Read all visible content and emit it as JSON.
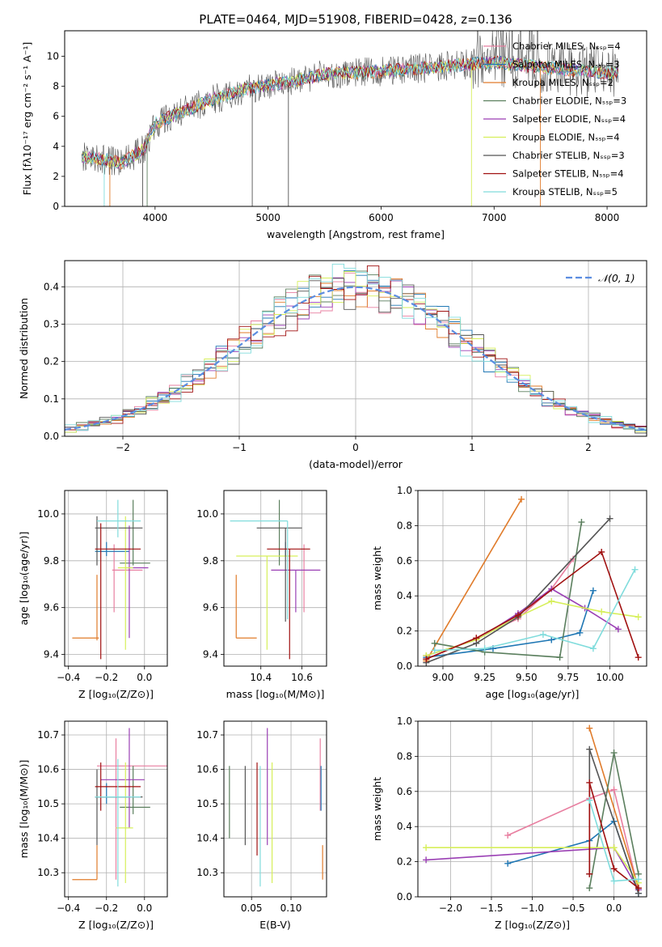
{
  "figure": {
    "title": "PLATE=0464, MJD=51908, FIBERID=0428, z=0.136"
  },
  "colors": {
    "series": [
      "#e87fa0",
      "#1f77b4",
      "#e07b2a",
      "#5b7f5e",
      "#9a3fb4",
      "#d6ef5a",
      "#555555",
      "#a01010",
      "#80dcdc"
    ],
    "mean_line": "#5b8de0",
    "grid": "#b0b0b0"
  },
  "chart_data": [
    {
      "id": "spectrum",
      "type": "line",
      "xlabel": "wavelength [Angstrom, rest frame]",
      "ylabel": "Flux [fλ10⁻¹⁷ erg cm⁻² s⁻¹ A⁻¹]",
      "xlim": [
        3200,
        8350
      ],
      "ylim": [
        0,
        11.7
      ],
      "xticks": [
        4000,
        5000,
        6000,
        7000,
        8000
      ],
      "yticks": [
        0,
        2,
        4,
        6,
        8,
        10
      ],
      "grid": false,
      "legend_position": "top-right",
      "legend": [
        "Chabrier MILES, Nₛₛₚ=4",
        "Salpeter MILES, Nₛₛₚ=3",
        "Kroupa MILES, Nₛₛₚ=2",
        "Chabrier ELODIE, Nₛₛₚ=3",
        "Salpeter ELODIE, Nₛₛₚ=4",
        "Kroupa ELODIE, Nₛₛₚ=4",
        "Chabrier STELIB, Nₛₛₚ=3",
        "Salpeter STELIB, Nₛₛₚ=4",
        "Kroupa STELIB, Nₛₛₚ=5"
      ],
      "continuum": {
        "x": [
          3350,
          3500,
          3700,
          3900,
          4000,
          4200,
          4500,
          4800,
          5000,
          5200,
          5500,
          6000,
          6500,
          7000,
          7500,
          8000,
          8100
        ],
        "y": [
          3.3,
          3.2,
          2.9,
          3.8,
          5.5,
          6.2,
          7.1,
          7.8,
          8.1,
          8.3,
          8.8,
          9.0,
          9.3,
          9.6,
          9.2,
          8.9,
          9.0
        ]
      }
    },
    {
      "id": "residuals",
      "type": "line",
      "xlabel": "(data-model)/error",
      "ylabel": "Normed distribution",
      "xlim": [
        -2.5,
        2.5
      ],
      "ylim": [
        0,
        0.47
      ],
      "xticks": [
        -2,
        -1,
        0,
        1,
        2
      ],
      "xtick_labels": [
        "−2",
        "−1",
        "0",
        "1",
        "2"
      ],
      "yticks": [
        0.0,
        0.1,
        0.2,
        0.3,
        0.4
      ],
      "ytick_labels": [
        "0.0",
        "0.1",
        "0.2",
        "0.3",
        "0.4"
      ],
      "grid": true,
      "legend_position": "top-right",
      "normal_label": "𝒩(0, 1)"
    },
    {
      "id": "age-vs-Z",
      "type": "scatter",
      "xlabel": "Z [log₁₀(Z/Z⊙)]",
      "ylabel": "age  [log₁₀(age/yr)]",
      "xlim": [
        -0.42,
        0.12
      ],
      "ylim": [
        9.35,
        10.1
      ],
      "xticks": [
        -0.4,
        -0.2,
        0.0
      ],
      "xtick_labels": [
        "−0.4",
        "−0.2",
        "0.0"
      ],
      "yticks": [
        9.4,
        9.6,
        9.8,
        10.0
      ],
      "ytick_labels": [
        "9.4",
        "9.6",
        "9.8",
        "10.0"
      ],
      "grid": true,
      "points": [
        {
          "x": -0.16,
          "xerr": [
            0.01,
            0.15
          ],
          "y": 9.76,
          "yerr": [
            0.18,
            0.11
          ]
        },
        {
          "x": -0.2,
          "xerr": [
            0.06,
            0.12
          ],
          "y": 9.84,
          "yerr": [
            0.02,
            0.04
          ]
        },
        {
          "x": -0.25,
          "xerr": [
            0.13,
            0.01
          ],
          "y": 9.47,
          "yerr": [
            0.01,
            0.27
          ]
        },
        {
          "x": -0.06,
          "xerr": [
            0.07,
            0.09
          ],
          "y": 9.79,
          "yerr": [
            0.01,
            0.27
          ]
        },
        {
          "x": -0.08,
          "xerr": [
            0.02,
            0.1
          ],
          "y": 9.77,
          "yerr": [
            0.3,
            0.18
          ]
        },
        {
          "x": -0.1,
          "xerr": [
            0.04,
            0.04
          ],
          "y": 9.77,
          "yerr": [
            0.35,
            0.22
          ]
        },
        {
          "x": -0.25,
          "xerr": [
            0.01,
            0.24
          ],
          "y": 9.94,
          "yerr": [
            0.16,
            0.05
          ]
        },
        {
          "x": -0.23,
          "xerr": [
            0.03,
            0.21
          ],
          "y": 9.85,
          "yerr": [
            0.47,
            0.11
          ]
        },
        {
          "x": -0.14,
          "xerr": [
            0.11,
            0.12
          ],
          "y": 9.97,
          "yerr": [
            0.07,
            0.09
          ]
        }
      ]
    },
    {
      "id": "age-vs-mass",
      "type": "scatter",
      "xlabel": "mass [log₁₀(M/M⊙)]",
      "ylabel": "",
      "xlim": [
        10.22,
        10.72
      ],
      "ylim": [
        9.35,
        10.1
      ],
      "xticks": [
        10.4,
        10.6
      ],
      "xtick_labels": [
        "10.4",
        "10.6"
      ],
      "yticks": [
        9.4,
        9.6,
        9.8,
        10.0
      ],
      "ytick_labels": [
        "9.4",
        "9.6",
        "9.8",
        "10.0"
      ],
      "grid": true,
      "points": [
        {
          "x": 10.61,
          "xerr": [
            0.0,
            0.0
          ],
          "y": 9.76,
          "yerr": [
            0.18,
            0.11
          ]
        },
        {
          "x": 10.52,
          "xerr": [
            0.0,
            0.0
          ],
          "y": 9.84,
          "yerr": [
            0.02,
            0.04
          ]
        },
        {
          "x": 10.28,
          "xerr": [
            0.0,
            0.1
          ],
          "y": 9.47,
          "yerr": [
            0.0,
            0.27
          ]
        },
        {
          "x": 10.49,
          "xerr": [
            0.0,
            0.0
          ],
          "y": 9.79,
          "yerr": [
            0.01,
            0.27
          ]
        },
        {
          "x": 10.57,
          "xerr": [
            0.12,
            0.12
          ],
          "y": 9.76,
          "yerr": [
            0.18,
            0.0
          ]
        },
        {
          "x": 10.43,
          "xerr": [
            0.15,
            0.15
          ],
          "y": 9.82,
          "yerr": [
            0.4,
            0.0
          ]
        },
        {
          "x": 10.52,
          "xerr": [
            0.14,
            0.08
          ],
          "y": 9.94,
          "yerr": [
            0.4,
            0.0
          ]
        },
        {
          "x": 10.54,
          "xerr": [
            0.11,
            0.1
          ],
          "y": 9.85,
          "yerr": [
            0.47,
            0.0
          ]
        },
        {
          "x": 10.53,
          "xerr": [
            0.28,
            0.0
          ],
          "y": 9.97,
          "yerr": [
            0.42,
            0.0
          ]
        }
      ]
    },
    {
      "id": "mass-weight-vs-age",
      "type": "line",
      "xlabel": "age  [log₁₀(age/yr)]",
      "ylabel": "mass weight",
      "xlim": [
        8.85,
        10.22
      ],
      "ylim": [
        0,
        1.0
      ],
      "xticks": [
        9.0,
        9.25,
        9.5,
        9.75,
        10.0
      ],
      "xtick_labels": [
        "9.00",
        "9.25",
        "9.50",
        "9.75",
        "10.00"
      ],
      "yticks": [
        0.0,
        0.2,
        0.4,
        0.6,
        0.8,
        1.0
      ],
      "ytick_labels": [
        "0.0",
        "0.2",
        "0.4",
        "0.6",
        "0.8",
        "1.0"
      ],
      "grid": true,
      "series": [
        {
          "x": [
            8.9,
            9.2,
            9.45,
            9.65,
            9.78
          ],
          "y": [
            0.04,
            0.16,
            0.27,
            0.44,
            0.61
          ]
        },
        {
          "x": [
            8.9,
            9.3,
            9.65,
            9.82,
            9.9
          ],
          "y": [
            0.05,
            0.1,
            0.15,
            0.19,
            0.43
          ]
        },
        {
          "x": [
            8.9,
            9.47
          ],
          "y": [
            0.03,
            0.95
          ]
        },
        {
          "x": [
            8.95,
            9.25,
            9.7,
            9.83
          ],
          "y": [
            0.13,
            0.08,
            0.05,
            0.82
          ]
        },
        {
          "x": [
            8.9,
            9.2,
            9.45,
            9.65,
            9.85,
            10.05
          ],
          "y": [
            0.06,
            0.15,
            0.3,
            0.44,
            0.33,
            0.21
          ]
        },
        {
          "x": [
            8.9,
            9.2,
            9.45,
            9.65,
            9.95,
            10.17
          ],
          "y": [
            0.06,
            0.15,
            0.28,
            0.37,
            0.31,
            0.28
          ]
        },
        {
          "x": [
            8.9,
            9.2,
            9.45,
            10.0
          ],
          "y": [
            0.02,
            0.13,
            0.28,
            0.84
          ]
        },
        {
          "x": [
            8.9,
            9.2,
            9.45,
            9.95,
            10.17
          ],
          "y": [
            0.04,
            0.16,
            0.29,
            0.65,
            0.05
          ]
        },
        {
          "x": [
            8.95,
            9.25,
            9.6,
            9.9,
            10.15
          ],
          "y": [
            0.09,
            0.1,
            0.18,
            0.1,
            0.55
          ]
        }
      ]
    },
    {
      "id": "mass-vs-Z",
      "type": "scatter",
      "xlabel": "Z [log₁₀(Z/Z⊙)]",
      "ylabel": "mass [log₁₀(M/M⊙)]",
      "xlim": [
        -0.42,
        0.12
      ],
      "ylim": [
        10.23,
        10.74
      ],
      "xticks": [
        -0.4,
        -0.2,
        0.0
      ],
      "xtick_labels": [
        "−0.4",
        "−0.2",
        "0.0"
      ],
      "yticks": [
        10.3,
        10.4,
        10.5,
        10.6,
        10.7
      ],
      "ytick_labels": [
        "10.3",
        "10.4",
        "10.5",
        "10.6",
        "10.7"
      ],
      "grid": true,
      "points": [
        {
          "x": -0.15,
          "xerr": [
            0.1,
            0.27
          ],
          "y": 10.61,
          "yerr": [
            0.33,
            0.08
          ]
        },
        {
          "x": -0.2,
          "xerr": [
            0.06,
            0.11
          ],
          "y": 10.52,
          "yerr": [
            0.02,
            0.04
          ]
        },
        {
          "x": -0.25,
          "xerr": [
            0.13,
            0.0
          ],
          "y": 10.28,
          "yerr": [
            0.0,
            0.1
          ]
        },
        {
          "x": -0.06,
          "xerr": [
            0.07,
            0.09
          ],
          "y": 10.49,
          "yerr": [
            0.02,
            0.12
          ]
        },
        {
          "x": -0.08,
          "xerr": [
            0.15,
            0.08
          ],
          "y": 10.57,
          "yerr": [
            0.14,
            0.15
          ]
        },
        {
          "x": -0.1,
          "xerr": [
            0.05,
            0.04
          ],
          "y": 10.43,
          "yerr": [
            0.16,
            0.19
          ]
        },
        {
          "x": -0.25,
          "xerr": [
            0.01,
            0.24
          ],
          "y": 10.52,
          "yerr": [
            0.14,
            0.08
          ]
        },
        {
          "x": -0.23,
          "xerr": [
            0.03,
            0.21
          ],
          "y": 10.55,
          "yerr": [
            0.07,
            0.07
          ]
        },
        {
          "x": -0.14,
          "xerr": [
            0.12,
            0.12
          ],
          "y": 10.52,
          "yerr": [
            0.26,
            0.11
          ]
        }
      ]
    },
    {
      "id": "mass-vs-EBV",
      "type": "scatter",
      "xlabel": "E(B-V)",
      "ylabel": "",
      "xlim": [
        0.015,
        0.145
      ],
      "ylim": [
        10.23,
        10.74
      ],
      "xticks": [
        0.05,
        0.1
      ],
      "xtick_labels": [
        "0.05",
        "0.10"
      ],
      "yticks": [
        10.3,
        10.4,
        10.5,
        10.6,
        10.7
      ],
      "ytick_labels": [
        "10.3",
        "10.4",
        "10.5",
        "10.6",
        "10.7"
      ],
      "grid": true,
      "points": [
        {
          "x": 0.137,
          "xerr": [
            0,
            0
          ],
          "y": 10.58,
          "yerr": [
            0.1,
            0.11
          ]
        },
        {
          "x": 0.138,
          "xerr": [
            0,
            0
          ],
          "y": 10.52,
          "yerr": [
            0.04,
            0.09
          ]
        },
        {
          "x": 0.14,
          "xerr": [
            0,
            0
          ],
          "y": 10.3,
          "yerr": [
            0.02,
            0.08
          ]
        },
        {
          "x": 0.022,
          "xerr": [
            0,
            0
          ],
          "y": 10.5,
          "yerr": [
            0.1,
            0.11
          ]
        },
        {
          "x": 0.07,
          "xerr": [
            0,
            0
          ],
          "y": 10.55,
          "yerr": [
            0.17,
            0.17
          ]
        },
        {
          "x": 0.076,
          "xerr": [
            0,
            0
          ],
          "y": 10.44,
          "yerr": [
            0.17,
            0.18
          ]
        },
        {
          "x": 0.042,
          "xerr": [
            0,
            0
          ],
          "y": 10.48,
          "yerr": [
            0.1,
            0.13
          ]
        },
        {
          "x": 0.057,
          "xerr": [
            0,
            0
          ],
          "y": 10.48,
          "yerr": [
            0.13,
            0.14
          ]
        },
        {
          "x": 0.061,
          "xerr": [
            0,
            0
          ],
          "y": 10.43,
          "yerr": [
            0.17,
            0.18
          ]
        }
      ]
    },
    {
      "id": "mass-weight-vs-Z",
      "type": "line",
      "xlabel": "Z [log₁₀(Z/Z⊙)]",
      "ylabel": "mass weight",
      "xlim": [
        -2.4,
        0.4
      ],
      "ylim": [
        0,
        1.0
      ],
      "xticks": [
        -2.0,
        -1.5,
        -1.0,
        -0.5,
        0.0
      ],
      "xtick_labels": [
        "−2.0",
        "−1.5",
        "−1.0",
        "−0.5",
        "0.0"
      ],
      "yticks": [
        0.0,
        0.2,
        0.4,
        0.6,
        0.8,
        1.0
      ],
      "ytick_labels": [
        "0.0",
        "0.2",
        "0.4",
        "0.6",
        "0.8",
        "1.0"
      ],
      "grid": true,
      "series": [
        {
          "x": [
            -1.3,
            -0.3,
            0.0,
            0.3
          ],
          "y": [
            0.35,
            0.56,
            0.61,
            0.04
          ]
        },
        {
          "x": [
            -1.3,
            -0.3,
            0.0,
            0.3
          ],
          "y": [
            0.19,
            0.32,
            0.43,
            0.02
          ]
        },
        {
          "x": [
            -0.3,
            0.3
          ],
          "y": [
            0.96,
            0.05
          ]
        },
        {
          "x": [
            -0.3,
            0.0,
            0.3
          ],
          "y": [
            0.05,
            0.82,
            0.13
          ]
        },
        {
          "x": [
            -2.3,
            0.0,
            0.3
          ],
          "y": [
            0.21,
            0.28,
            0.04
          ]
        },
        {
          "x": [
            -2.3,
            0.0,
            0.3
          ],
          "y": [
            0.28,
            0.28,
            0.08
          ]
        },
        {
          "x": [
            -0.3,
            -0.3,
            0.3
          ],
          "y": [
            0.13,
            0.84,
            0.02
          ]
        },
        {
          "x": [
            -0.3,
            -0.3,
            0.0,
            0.3
          ],
          "y": [
            0.13,
            0.65,
            0.16,
            0.05
          ]
        },
        {
          "x": [
            -0.3,
            0.0,
            0.3
          ],
          "y": [
            0.55,
            0.09,
            0.1
          ]
        }
      ]
    }
  ]
}
